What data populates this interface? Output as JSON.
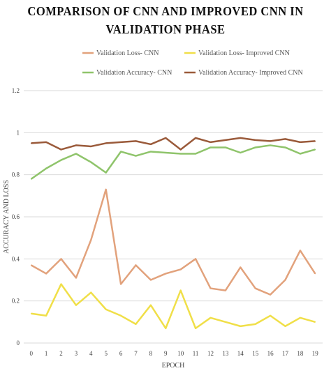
{
  "chart_data": {
    "type": "line",
    "title_lines": [
      "COMPARISON OF CNN AND IMPROVED CNN IN",
      "VALIDATION PHASE"
    ],
    "xlabel": "EPOCH",
    "ylabel": "ACCURACY AND LOSS",
    "x": [
      "0",
      "1",
      "2",
      "3",
      "4",
      "5",
      "6",
      "7",
      "8",
      "9",
      "10",
      "11",
      "12",
      "13",
      "14",
      "15",
      "16",
      "17",
      "18",
      "19"
    ],
    "yticks": [
      "0",
      "0.2",
      "0.4",
      "0.6",
      "0.8",
      "1",
      "1.2"
    ],
    "ylim": [
      0,
      1.2
    ],
    "grid": true,
    "legend_position": "top",
    "series": [
      {
        "name": "Validation Loss- CNN",
        "color": "#e2a27c",
        "values": [
          0.37,
          0.33,
          0.4,
          0.31,
          0.49,
          0.73,
          0.28,
          0.37,
          0.3,
          0.33,
          0.35,
          0.4,
          0.26,
          0.25,
          0.36,
          0.26,
          0.23,
          0.3,
          0.44,
          0.33
        ]
      },
      {
        "name": "Validation Loss- Improved CNN",
        "color": "#f0df48",
        "values": [
          0.14,
          0.13,
          0.28,
          0.18,
          0.24,
          0.16,
          0.13,
          0.09,
          0.18,
          0.07,
          0.25,
          0.07,
          0.12,
          0.1,
          0.08,
          0.09,
          0.13,
          0.08,
          0.12,
          0.1
        ]
      },
      {
        "name": "Validation Accuracy- CNN",
        "color": "#8fc46b",
        "values": [
          0.78,
          0.83,
          0.87,
          0.9,
          0.86,
          0.81,
          0.91,
          0.89,
          0.91,
          0.905,
          0.9,
          0.9,
          0.93,
          0.93,
          0.905,
          0.93,
          0.94,
          0.93,
          0.9,
          0.92
        ]
      },
      {
        "name": "Validation Accuracy- Improved CNN",
        "color": "#9a5a3a",
        "values": [
          0.95,
          0.955,
          0.92,
          0.94,
          0.935,
          0.95,
          0.955,
          0.96,
          0.945,
          0.975,
          0.92,
          0.975,
          0.955,
          0.965,
          0.975,
          0.965,
          0.96,
          0.97,
          0.955,
          0.96
        ]
      }
    ]
  }
}
